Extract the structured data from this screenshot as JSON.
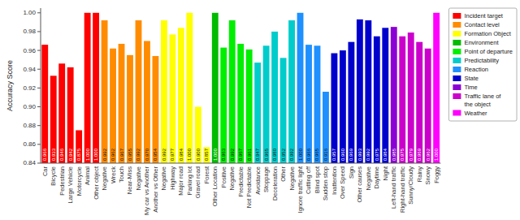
{
  "chart_data": {
    "type": "bar",
    "ylabel": "Accuracy Score",
    "categories": [
      "Car",
      "Bicycle",
      "Pedestrian",
      "Large Vehicle",
      "Motorcycle",
      "Animal",
      "Other object",
      "Negative",
      "Wreck",
      "Touch",
      "Near-Miss",
      "Negative",
      "My car vs Another",
      "Another vs Other",
      "Negative",
      "Highway",
      "Major road",
      "Parking lot",
      "Gravel road",
      "Forest",
      "Other Location",
      "Positive",
      "Negative",
      "Predictable",
      "Not Predictable",
      "Avoidance",
      "Stoppage",
      "Deceleration",
      "Other",
      "Negative",
      "Ignore traffic light",
      "Cutting off",
      "Blind spot",
      "Sudden stop",
      "Inattention",
      "Over Speed",
      "Sign",
      "Other causes",
      "Negative",
      "Daytime",
      "Night",
      "Left-hand traffic",
      "Right-hand traffic",
      "Sunny/Cloudy",
      "Rainy",
      "Snowy",
      "Foggy"
    ],
    "series": [
      {
        "name": "Incident target",
        "color": "#ff0000",
        "values": [
          0.966,
          0.933,
          0.946,
          0.942,
          0.875,
          1.0,
          1.0,
          null,
          null,
          null,
          null,
          null,
          null,
          null,
          null,
          null,
          null,
          null,
          null,
          null,
          null,
          null,
          null,
          null,
          null,
          null,
          null,
          null,
          null,
          null,
          null,
          null,
          null,
          null,
          null,
          null,
          null,
          null,
          null,
          null,
          null,
          null,
          null,
          null,
          null,
          null,
          null
        ],
        "value_labels": [
          "0.966",
          "0.933",
          "0.946",
          "0.942",
          "0.875",
          "1.000",
          "1.000",
          null,
          null,
          null,
          null,
          null,
          null,
          null,
          null,
          null,
          null,
          null,
          null,
          null,
          null,
          null,
          null,
          null,
          null,
          null,
          null,
          null,
          null,
          null,
          null,
          null,
          null,
          null,
          null,
          null,
          null,
          null,
          null,
          null,
          null,
          null,
          null,
          null,
          null,
          null,
          null
        ]
      },
      {
        "name": "Contact level",
        "color": "#ff8c00",
        "values": [
          null,
          null,
          null,
          null,
          null,
          null,
          null,
          0.992,
          0.962,
          0.967,
          0.955,
          0.992,
          0.97,
          0.954,
          null,
          null,
          null,
          null,
          null,
          null,
          null,
          null,
          null,
          null,
          null,
          null,
          null,
          null,
          null,
          null,
          null,
          null,
          null,
          null,
          null,
          null,
          null,
          null,
          null,
          null,
          null,
          null,
          null,
          null,
          null,
          null,
          null
        ],
        "value_labels": [
          null,
          null,
          null,
          null,
          null,
          null,
          null,
          "0.992",
          "0.962",
          "0.967",
          "0.955",
          "0.992",
          "0.970",
          "0.954",
          null,
          null,
          null,
          null,
          null,
          null,
          null,
          null,
          null,
          null,
          null,
          null,
          null,
          null,
          null,
          null,
          null,
          null,
          null,
          null,
          null,
          null,
          null,
          null,
          null,
          null,
          null,
          null,
          null,
          null,
          null,
          null,
          null
        ]
      },
      {
        "name": "Formation Object",
        "color": "#ffff00",
        "values": [
          null,
          null,
          null,
          null,
          null,
          null,
          null,
          null,
          null,
          null,
          null,
          null,
          null,
          null,
          0.992,
          0.977,
          0.984,
          1.0,
          0.9,
          0.857,
          null,
          null,
          null,
          null,
          null,
          null,
          null,
          null,
          null,
          null,
          null,
          null,
          null,
          null,
          null,
          null,
          null,
          null,
          null,
          null,
          null,
          null,
          null,
          null,
          null,
          null,
          null
        ],
        "value_labels": [
          null,
          null,
          null,
          null,
          null,
          null,
          null,
          null,
          null,
          null,
          null,
          null,
          null,
          null,
          "0.992",
          "0.977",
          "0.984",
          "1.000",
          "0.900",
          "0.857",
          null,
          null,
          null,
          null,
          null,
          null,
          null,
          null,
          null,
          null,
          null,
          null,
          null,
          null,
          null,
          null,
          null,
          null,
          null,
          null,
          null,
          null,
          null,
          null,
          null,
          null,
          null
        ]
      },
      {
        "name": "Environment",
        "color": "#00bb00",
        "values": [
          null,
          null,
          null,
          null,
          null,
          null,
          null,
          null,
          null,
          null,
          null,
          null,
          null,
          null,
          null,
          null,
          null,
          null,
          null,
          null,
          1.0,
          null,
          null,
          null,
          null,
          null,
          null,
          null,
          null,
          null,
          null,
          null,
          null,
          null,
          null,
          null,
          null,
          null,
          null,
          null,
          null,
          null,
          null,
          null,
          null,
          null,
          null
        ],
        "value_labels": [
          null,
          null,
          null,
          null,
          null,
          null,
          null,
          null,
          null,
          null,
          null,
          null,
          null,
          null,
          null,
          null,
          null,
          null,
          null,
          null,
          "1.000",
          null,
          null,
          null,
          null,
          null,
          null,
          null,
          null,
          null,
          null,
          null,
          null,
          null,
          null,
          null,
          null,
          null,
          null,
          null,
          null,
          null,
          null,
          null,
          null,
          null,
          null
        ]
      },
      {
        "name": "Point of departure",
        "color": "#00ee00",
        "values": [
          null,
          null,
          null,
          null,
          null,
          null,
          null,
          null,
          null,
          null,
          null,
          null,
          null,
          null,
          null,
          null,
          null,
          null,
          null,
          null,
          null,
          0.963,
          0.992,
          0.967,
          0.961,
          null,
          null,
          null,
          null,
          null,
          null,
          null,
          null,
          null,
          null,
          null,
          null,
          null,
          null,
          null,
          null,
          null,
          null,
          null,
          null,
          null,
          null
        ],
        "value_labels": [
          null,
          null,
          null,
          null,
          null,
          null,
          null,
          null,
          null,
          null,
          null,
          null,
          null,
          null,
          null,
          null,
          null,
          null,
          null,
          null,
          null,
          "0.963",
          "0.992",
          "0.967",
          "0.961",
          null,
          null,
          null,
          null,
          null,
          null,
          null,
          null,
          null,
          null,
          null,
          null,
          null,
          null,
          null,
          null,
          null,
          null,
          null,
          null,
          null,
          null
        ]
      },
      {
        "name": "Predictability",
        "color": "#00cccc",
        "values": [
          null,
          null,
          null,
          null,
          null,
          null,
          null,
          null,
          null,
          null,
          null,
          null,
          null,
          null,
          null,
          null,
          null,
          null,
          null,
          null,
          null,
          null,
          null,
          null,
          null,
          0.947,
          0.965,
          0.98,
          0.952,
          0.992,
          null,
          null,
          null,
          null,
          null,
          null,
          null,
          null,
          null,
          null,
          null,
          null,
          null,
          null,
          null,
          null,
          null
        ],
        "value_labels": [
          null,
          null,
          null,
          null,
          null,
          null,
          null,
          null,
          null,
          null,
          null,
          null,
          null,
          null,
          null,
          null,
          null,
          null,
          null,
          null,
          null,
          null,
          null,
          null,
          null,
          "0.947",
          "0.965",
          "0.980",
          "0.952",
          "0.992",
          null,
          null,
          null,
          null,
          null,
          null,
          null,
          null,
          null,
          null,
          null,
          null,
          null,
          null,
          null,
          null,
          null
        ]
      },
      {
        "name": "Reaction",
        "color": "#1e90ff",
        "values": [
          null,
          null,
          null,
          null,
          null,
          null,
          null,
          null,
          null,
          null,
          null,
          null,
          null,
          null,
          null,
          null,
          null,
          null,
          null,
          null,
          null,
          null,
          null,
          null,
          null,
          null,
          null,
          null,
          null,
          null,
          1.0,
          0.966,
          0.965,
          0.916,
          null,
          null,
          null,
          null,
          null,
          null,
          null,
          null,
          null,
          null,
          null,
          null,
          null
        ],
        "value_labels": [
          null,
          null,
          null,
          null,
          null,
          null,
          null,
          null,
          null,
          null,
          null,
          null,
          null,
          null,
          null,
          null,
          null,
          null,
          null,
          null,
          null,
          null,
          null,
          null,
          null,
          null,
          null,
          null,
          null,
          null,
          "1.000",
          "0.966",
          "0.965",
          "0.916",
          null,
          null,
          null,
          null,
          null,
          null,
          null,
          null,
          null,
          null,
          null,
          null,
          null
        ]
      },
      {
        "name": "State",
        "color": "#0000cd",
        "values": [
          null,
          null,
          null,
          null,
          null,
          null,
          null,
          null,
          null,
          null,
          null,
          null,
          null,
          null,
          null,
          null,
          null,
          null,
          null,
          null,
          null,
          null,
          null,
          null,
          null,
          null,
          null,
          null,
          null,
          null,
          null,
          null,
          null,
          null,
          0.957,
          0.96,
          0.969,
          0.993,
          0.992,
          0.975,
          0.984,
          null,
          null,
          null,
          null,
          null,
          null
        ],
        "value_labels": [
          null,
          null,
          null,
          null,
          null,
          null,
          null,
          null,
          null,
          null,
          null,
          null,
          null,
          null,
          null,
          null,
          null,
          null,
          null,
          null,
          null,
          null,
          null,
          null,
          null,
          null,
          null,
          null,
          null,
          null,
          null,
          null,
          null,
          null,
          "0.957",
          "0.960",
          "0.969",
          "0.993",
          "0.992",
          "0.975",
          "0.984",
          null,
          null,
          null,
          null,
          null,
          null
        ]
      },
      {
        "name": "Time",
        "color": "#8b00d4",
        "values": [
          null,
          null,
          null,
          null,
          null,
          null,
          null,
          null,
          null,
          null,
          null,
          null,
          null,
          null,
          null,
          null,
          null,
          null,
          null,
          null,
          null,
          null,
          null,
          null,
          null,
          null,
          null,
          null,
          null,
          null,
          null,
          null,
          null,
          null,
          null,
          null,
          null,
          null,
          null,
          null,
          null,
          0.985,
          null,
          null,
          null,
          null,
          null
        ],
        "value_labels": [
          null,
          null,
          null,
          null,
          null,
          null,
          null,
          null,
          null,
          null,
          null,
          null,
          null,
          null,
          null,
          null,
          null,
          null,
          null,
          null,
          null,
          null,
          null,
          null,
          null,
          null,
          null,
          null,
          null,
          null,
          null,
          null,
          null,
          null,
          null,
          null,
          null,
          null,
          null,
          null,
          null,
          "0.985",
          null,
          null,
          null,
          null,
          null
        ]
      },
      {
        "name": "Traffic lane of\nthe object",
        "color": "#cc00cc",
        "values": [
          null,
          null,
          null,
          null,
          null,
          null,
          null,
          null,
          null,
          null,
          null,
          null,
          null,
          null,
          null,
          null,
          null,
          null,
          null,
          null,
          null,
          null,
          null,
          null,
          null,
          null,
          null,
          null,
          null,
          null,
          null,
          null,
          null,
          null,
          null,
          null,
          null,
          null,
          null,
          null,
          null,
          null,
          0.975,
          0.979,
          0.969,
          0.962,
          null
        ],
        "value_labels": [
          null,
          null,
          null,
          null,
          null,
          null,
          null,
          null,
          null,
          null,
          null,
          null,
          null,
          null,
          null,
          null,
          null,
          null,
          null,
          null,
          null,
          null,
          null,
          null,
          null,
          null,
          null,
          null,
          null,
          null,
          null,
          null,
          null,
          null,
          null,
          null,
          null,
          null,
          null,
          null,
          null,
          null,
          "0.975",
          "0.979",
          "0.969",
          "0.962",
          null
        ]
      },
      {
        "name": "Weather",
        "color": "#ff00ff",
        "values": [
          null,
          null,
          null,
          null,
          null,
          null,
          null,
          null,
          null,
          null,
          null,
          null,
          null,
          null,
          null,
          null,
          null,
          null,
          null,
          null,
          null,
          null,
          null,
          null,
          null,
          null,
          null,
          null,
          null,
          null,
          null,
          null,
          null,
          null,
          null,
          null,
          null,
          null,
          null,
          null,
          null,
          null,
          null,
          null,
          null,
          null,
          1.0
        ],
        "value_labels": [
          null,
          null,
          null,
          null,
          null,
          null,
          null,
          null,
          null,
          null,
          null,
          null,
          null,
          null,
          null,
          null,
          null,
          null,
          null,
          null,
          null,
          null,
          null,
          null,
          null,
          null,
          null,
          null,
          null,
          null,
          null,
          null,
          null,
          null,
          null,
          null,
          null,
          null,
          null,
          null,
          null,
          null,
          null,
          null,
          null,
          null,
          "1.000"
        ]
      }
    ],
    "stacked": true,
    "data_labels": true,
    "legend": "upper right",
    "grid": false,
    "ylim": [
      0.84,
      1.005
    ],
    "yticks": [
      0.84,
      0.86,
      0.88,
      {
        "value": 0.9,
        "label": "0.90"
      },
      0.92,
      0.94,
      0.96,
      0.98,
      {
        "value": 1.0,
        "label": "1.00"
      }
    ]
  }
}
